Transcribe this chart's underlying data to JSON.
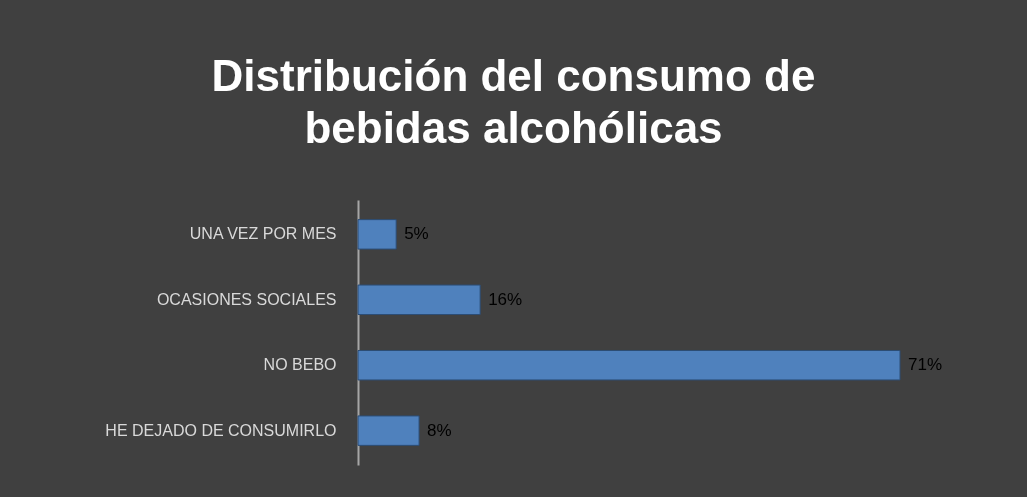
{
  "chart_data": {
    "type": "bar",
    "orientation": "horizontal",
    "title": "Distribución del consumo de bebidas alcohólicas",
    "categories": [
      "UNA VEZ POR MES",
      "OCASIONES SOCIALES",
      "NO BEBO",
      "HE DEJADO DE CONSUMIRLO"
    ],
    "values": [
      5,
      16,
      71,
      8
    ],
    "value_labels": [
      "5%",
      "16%",
      "71%",
      "8%"
    ],
    "color": "#4f81bd"
  }
}
